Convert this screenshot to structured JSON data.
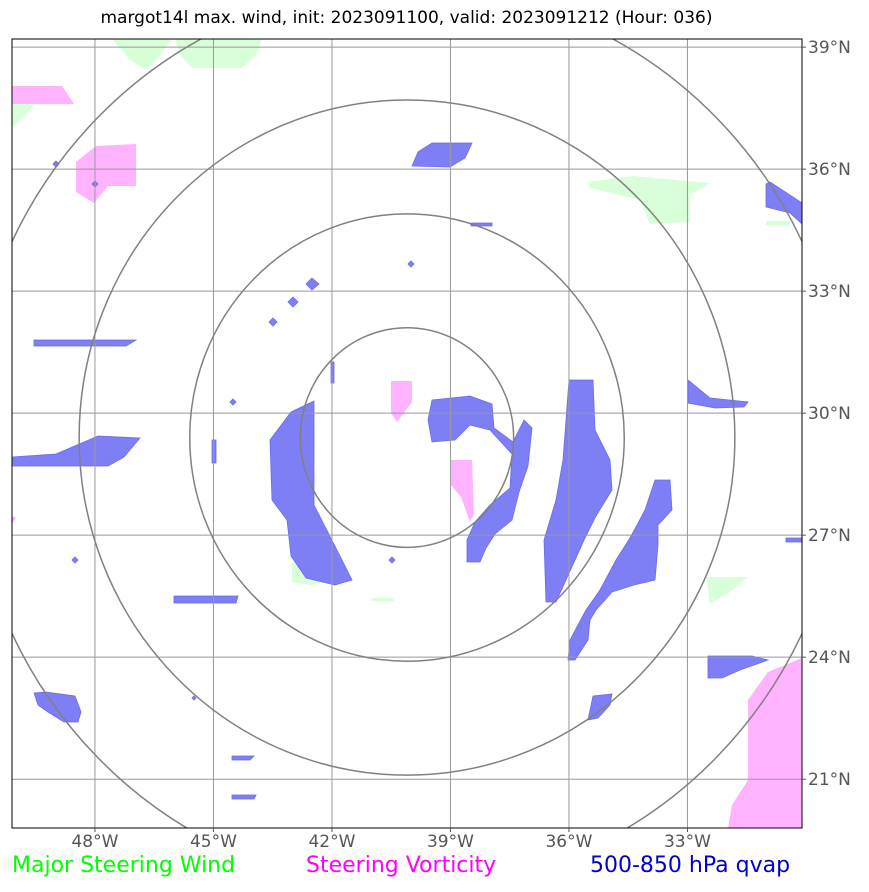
{
  "title": "margot14l max. wind, init: 2023091100, valid: 2023091212 (Hour: 036)",
  "lon_ticks": [
    {
      "deg": -48,
      "label": "48°W"
    },
    {
      "deg": -45,
      "label": "45°W"
    },
    {
      "deg": -42,
      "label": "42°W"
    },
    {
      "deg": -39,
      "label": "39°W"
    },
    {
      "deg": -36,
      "label": "36°W"
    },
    {
      "deg": -33,
      "label": "33°W"
    }
  ],
  "lat_ticks": [
    {
      "deg": 39,
      "label": "39°N"
    },
    {
      "deg": 36,
      "label": "36°N"
    },
    {
      "deg": 33,
      "label": "33°N"
    },
    {
      "deg": 30,
      "label": "30°N"
    },
    {
      "deg": 27,
      "label": "27°N"
    },
    {
      "deg": 24,
      "label": "24°N"
    },
    {
      "deg": 21,
      "label": "21°N"
    }
  ],
  "extent": {
    "lon": [
      -50.1,
      -30.1
    ],
    "lat": [
      19.8,
      39.2
    ]
  },
  "storm_center": {
    "lon": -40.1,
    "lat": 29.4
  },
  "range_ring_radii_deg": [
    2.7,
    5.5,
    8.3,
    11.1
  ],
  "legend": [
    {
      "label": "Major Steering Wind",
      "color": "#00ff00"
    },
    {
      "label": "Steering Vorticity",
      "color": "#ff00ff"
    },
    {
      "label": "500-850 hPa qvap",
      "color": "#0000cc"
    }
  ],
  "colors": {
    "steering_wind_fill": "#ccffcc",
    "vorticity_fill": "#ffb3ff",
    "qvap_fill": "#7f7ff5",
    "gridline": "#999999",
    "range_ring": "#808080"
  }
}
